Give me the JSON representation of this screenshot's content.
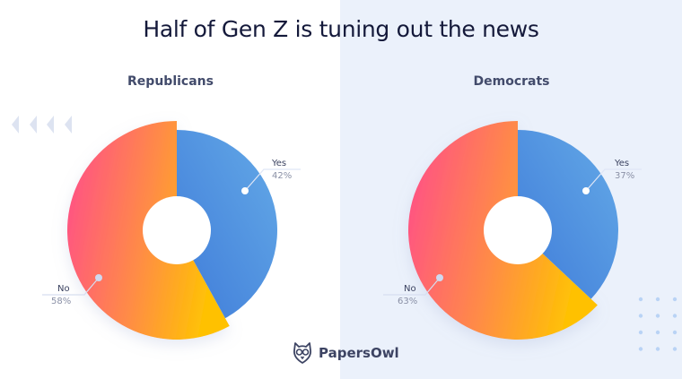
{
  "chart_data": [
    {
      "type": "pie",
      "title": "Republicans",
      "categories": [
        "Yes",
        "No"
      ],
      "values": [
        42,
        58
      ],
      "labels": [
        "42%",
        "58%"
      ]
    },
    {
      "type": "pie",
      "title": "Democrats",
      "categories": [
        "Yes",
        "No"
      ],
      "values": [
        37,
        63
      ],
      "labels": [
        "37%",
        "63%"
      ]
    }
  ],
  "header": {
    "title": "Half of Gen Z is tuning out the news"
  },
  "brand": {
    "name": "PapersOwl",
    "icon": "owl-logo-icon"
  },
  "colors": {
    "yes_start": "#3f7bd9",
    "yes_end": "#62a8e6",
    "no_start": "#ff4f8b",
    "no_mid": "#ff8a4a",
    "no_end": "#ffc107",
    "panel_bg": "#ebf1fb",
    "title": "#14193a"
  }
}
